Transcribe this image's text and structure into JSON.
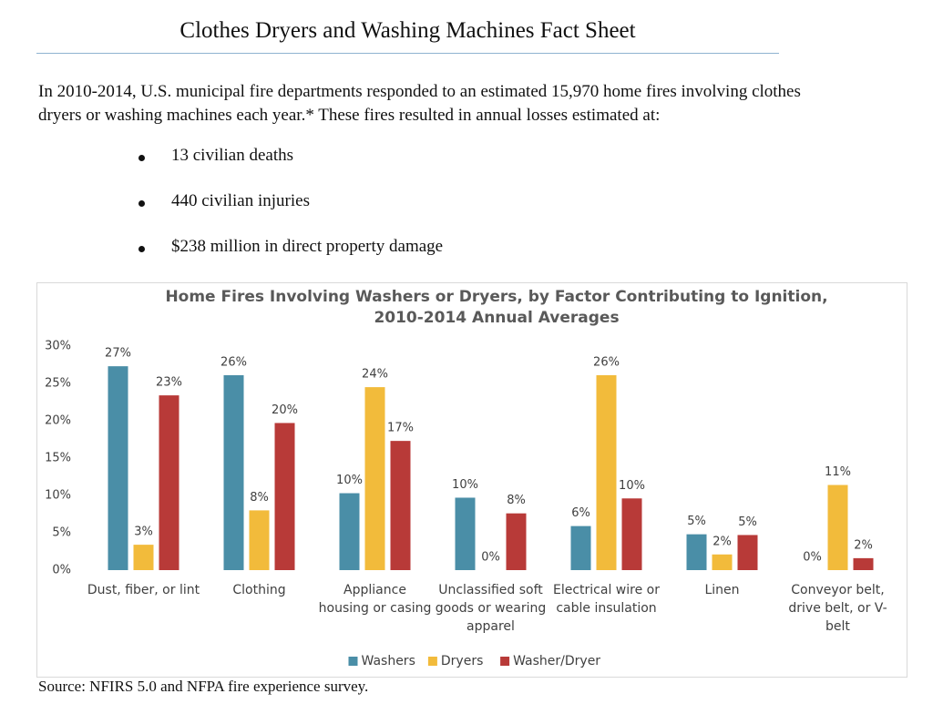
{
  "header": {
    "title": "Clothes Dryers and Washing Machines Fact Sheet"
  },
  "intro": "In 2010-2014, U.S. municipal fire departments responded to an estimated 15,970 home fires involving clothes dryers or washing machines each year.*  These fires resulted in annual losses estimated at:",
  "bullets": [
    "13 civilian deaths",
    "440 civilian injuries",
    "$238 million in direct property damage"
  ],
  "chart_data": {
    "type": "bar",
    "title": "Home Fires Involving Washers or Dryers, by Factor Contributing to Ignition, 2010-2014 Annual Averages",
    "categories": [
      "Dust, fiber, or lint",
      "Clothing",
      "Appliance housing or casing",
      "Unclassified soft goods or wearing apparel",
      "Electrical wire or cable insulation",
      "Linen",
      "Conveyor belt, drive belt, or V-belt"
    ],
    "series": [
      {
        "name": "Washers",
        "color": "#4a8ea7",
        "values": [
          27.3,
          26.1,
          10.3,
          9.7,
          5.9,
          4.8,
          0
        ],
        "value_labels": [
          "27%",
          "26%",
          "10%",
          "10%",
          "6%",
          "5%",
          "0%"
        ]
      },
      {
        "name": "Dryers",
        "color": "#f2bb3b",
        "values": [
          3.4,
          8.0,
          24.5,
          0,
          26.1,
          2.1,
          11.4
        ],
        "value_labels": [
          "3%",
          "8%",
          "24%",
          "0%",
          "26%",
          "2%",
          "11%"
        ]
      },
      {
        "name": "Washer/Dryer",
        "color": "#b83a38",
        "values": [
          23.4,
          19.7,
          17.3,
          7.6,
          9.6,
          4.7,
          1.6
        ],
        "value_labels": [
          "23%",
          "20%",
          "17%",
          "8%",
          "10%",
          "5%",
          "2%"
        ]
      }
    ],
    "ylim": [
      0,
      30
    ],
    "yticks": [
      {
        "value": 0,
        "label": "0%"
      },
      {
        "value": 5,
        "label": "5%"
      },
      {
        "value": 10,
        "label": "10%"
      },
      {
        "value": 15,
        "label": "15%"
      },
      {
        "value": 20,
        "label": "20%"
      },
      {
        "value": 25,
        "label": "25%"
      },
      {
        "value": 30,
        "label": "30%"
      }
    ],
    "legend": "bottom"
  },
  "source": "Source: NFIRS 5.0 and NFPA fire experience survey."
}
